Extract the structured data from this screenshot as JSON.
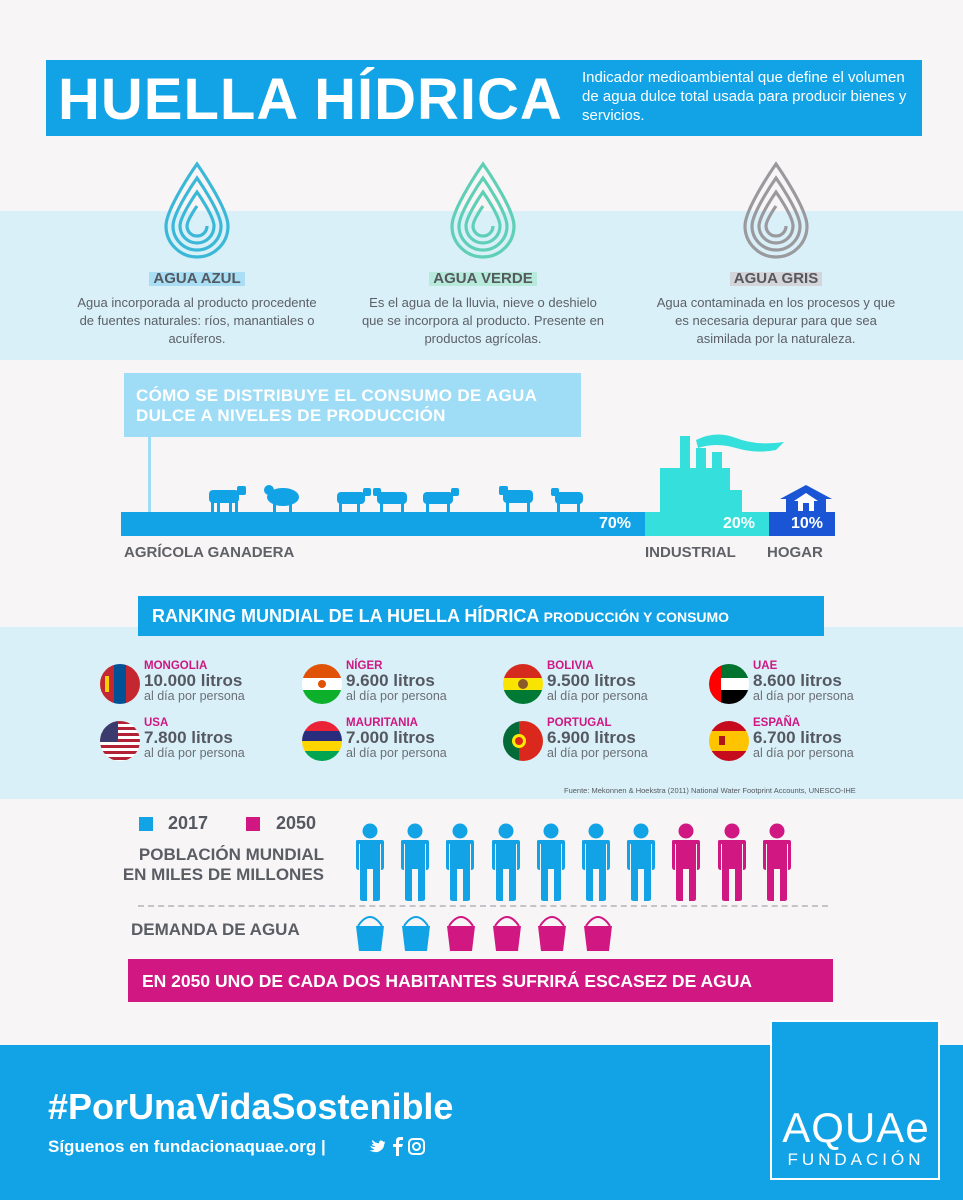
{
  "header": {
    "title": "HUELLA HÍDRICA",
    "subtitle": "Indicador medioambiental que define el volumen de agua dulce total usada para producir bienes y servicios."
  },
  "water_types": [
    {
      "name": "AGUA AZUL",
      "description": "Agua incorporada al producto procedente de fuentes naturales: ríos, manantiales o acuíferos.",
      "color": "#3bb7d8"
    },
    {
      "name": "AGUA VERDE",
      "description": "Es el agua de la lluvia, nieve o deshielo que se incorpora al producto. Presente en productos agrícolas.",
      "color": "#5fcfb6"
    },
    {
      "name": "AGUA GRIS",
      "description": "Agua contaminada en los procesos y que es necesaria depurar para que sea asimilada por la naturaleza.",
      "color": "#9a9a9e"
    }
  ],
  "distribution": {
    "title": "CÓMO SE DISTRIBUYE EL CONSUMO DE AGUA DULCE A NIVELES DE PRODUCCIÓN",
    "segments": [
      {
        "label": "AGRÍCOLA GANADERA",
        "percent_label": "70%",
        "value": 70,
        "color": "#12a3e6"
      },
      {
        "label": "INDUSTRIAL",
        "percent_label": "20%",
        "value": 20,
        "color": "#35e0dc"
      },
      {
        "label": "HOGAR",
        "percent_label": "10%",
        "value": 10,
        "color": "#1a55d6"
      }
    ]
  },
  "ranking": {
    "title": "RANKING MUNDIAL DE LA HUELLA HÍDRICA",
    "title_sub": "PRODUCCIÓN Y CONSUMO",
    "unit": "al día por persona",
    "countries": [
      {
        "name": "MONGOLIA",
        "value": "10.000 litros",
        "flag": "mongolia-flag-icon"
      },
      {
        "name": "NÍGER",
        "value": "9.600 litros",
        "flag": "niger-flag-icon"
      },
      {
        "name": "BOLIVIA",
        "value": "9.500 litros",
        "flag": "bolivia-flag-icon"
      },
      {
        "name": "UAE",
        "value": "8.600 litros",
        "flag": "uae-flag-icon"
      },
      {
        "name": "USA",
        "value": "7.800 litros",
        "flag": "usa-flag-icon"
      },
      {
        "name": "MAURITANIA",
        "value": "7.000 litros",
        "flag": "mauritania-flag-icon"
      },
      {
        "name": "PORTUGAL",
        "value": "6.900 litros",
        "flag": "portugal-flag-icon"
      },
      {
        "name": "ESPAÑA",
        "value": "6.700 litros",
        "flag": "spain-flag-icon"
      }
    ],
    "source": "Fuente: Mekonnen & Hoekstra (2011) National Water Footprint Accounts, UNESCO-IHE"
  },
  "population": {
    "legend": [
      {
        "label": "2017",
        "color": "#12a3e6"
      },
      {
        "label": "2050",
        "color": "#d01782"
      }
    ],
    "label": "POBLACIÓN MUNDIAL EN MILES DE MILLONES",
    "people_2017": 7,
    "people_2050": 10,
    "demand_label": "DEMANDA DE AGUA",
    "buckets_2017": 2,
    "buckets_2050": 6,
    "alert": "EN 2050 UNO DE CADA DOS HABITANTES SUFRIRÁ ESCASEZ DE AGUA"
  },
  "footer": {
    "hashtag": "#PorUnaVidaSostenible",
    "follow": "Síguenos en fundacionaquae.org |",
    "social_icons": [
      "twitter-icon",
      "facebook-icon",
      "instagram-icon"
    ],
    "logo": "AQUAe",
    "logo_sub": "FUNDACIÓN"
  }
}
